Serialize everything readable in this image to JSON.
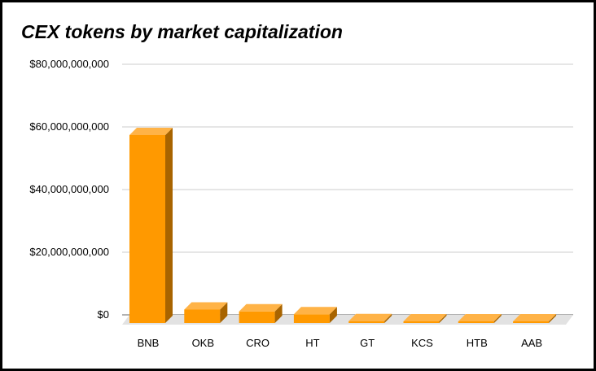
{
  "chart_data": {
    "type": "bar",
    "title": "CEX tokens by market capitalization",
    "categories": [
      "BNB",
      "OKB",
      "CRO",
      "HT",
      "GT",
      "KCS",
      "HTB",
      "AAB"
    ],
    "values": [
      60000000000,
      4300000000,
      3700000000,
      2800000000,
      600000000,
      500000000,
      100000000,
      100000000
    ],
    "y_ticks": [
      "$0",
      "$20,000,000,000",
      "$40,000,000,000",
      "$60,000,000,000",
      "$80,000,000,000"
    ],
    "y_tick_values": [
      0,
      20000000000,
      40000000000,
      60000000000,
      80000000000
    ],
    "ylim": [
      0,
      80000000000
    ],
    "xlabel": "",
    "ylabel": "",
    "grid": true,
    "legend": "none",
    "colors": {
      "bar_front": "#ff9900",
      "bar_top": "#ffb347",
      "bar_side": "#a86400",
      "grid": "#cccccc",
      "floor": "#e2e2e2",
      "axis": "#666666"
    }
  }
}
